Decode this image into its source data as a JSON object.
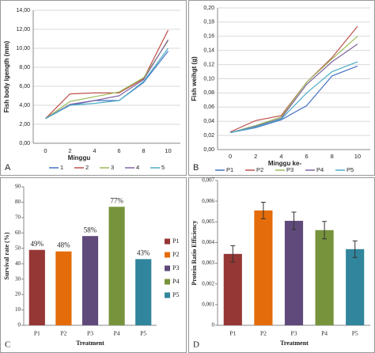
{
  "chart_data": [
    {
      "type": "line",
      "label": "A",
      "x_label": "Minggu",
      "y_label": "Fish body lgength (mm)",
      "categories": [
        "0",
        "2",
        "4",
        "6",
        "8",
        "10"
      ],
      "ylim": [
        0,
        14
      ],
      "yticks": [
        {
          "value": 0,
          "label": "0,00"
        },
        {
          "value": 2,
          "label": "2,00"
        },
        {
          "value": 4,
          "label": "4,00"
        },
        {
          "value": 6,
          "label": "6,00"
        },
        {
          "value": 8,
          "label": "8,00"
        },
        {
          "value": 10,
          "label": "10,00"
        },
        {
          "value": 12,
          "label": "12,00"
        },
        {
          "value": 14,
          "label": "14,00"
        }
      ],
      "grid": true,
      "legend": "bottom",
      "series": [
        {
          "name": "1",
          "color": "#4472c4",
          "values": [
            2.6,
            4.0,
            4.5,
            4.5,
            6.4,
            9.7
          ]
        },
        {
          "name": "2",
          "color": "#c0504d",
          "values": [
            2.6,
            5.2,
            5.3,
            5.3,
            6.8,
            11.9
          ]
        },
        {
          "name": "3",
          "color": "#9bbb59",
          "values": [
            2.6,
            4.4,
            4.9,
            5.4,
            6.9,
            10.8
          ]
        },
        {
          "name": "4",
          "color": "#8064a2",
          "values": [
            2.6,
            4.1,
            4.5,
            5.0,
            6.7,
            10.9
          ]
        },
        {
          "name": "5",
          "color": "#4bacc6",
          "values": [
            2.6,
            4.0,
            4.2,
            4.5,
            6.5,
            10.0
          ]
        }
      ]
    },
    {
      "type": "line",
      "label": "B",
      "x_label": "Minggu ke-",
      "y_label": "Fish weihgt (g)",
      "categories": [
        "0",
        "2",
        "4",
        "6",
        "8",
        "10"
      ],
      "ylim": [
        0,
        0.2
      ],
      "yticks": [
        {
          "value": 0,
          "label": "0,00"
        },
        {
          "value": 0.02,
          "label": "0,02"
        },
        {
          "value": 0.04,
          "label": "0,04"
        },
        {
          "value": 0.06,
          "label": "0,06"
        },
        {
          "value": 0.08,
          "label": "0,08"
        },
        {
          "value": 0.1,
          "label": "0,10"
        },
        {
          "value": 0.12,
          "label": "0,12"
        },
        {
          "value": 0.14,
          "label": "0,14"
        },
        {
          "value": 0.16,
          "label": "0,16"
        },
        {
          "value": 0.18,
          "label": "0,18"
        },
        {
          "value": 0.2,
          "label": "0,20"
        }
      ],
      "grid": true,
      "legend": "bottom",
      "series": [
        {
          "name": "P1",
          "color": "#4472c4",
          "values": [
            0.024,
            0.031,
            0.042,
            0.062,
            0.104,
            0.118
          ]
        },
        {
          "name": "P2",
          "color": "#c0504d",
          "values": [
            0.025,
            0.041,
            0.048,
            0.095,
            0.13,
            0.174
          ]
        },
        {
          "name": "P3",
          "color": "#9bbb59",
          "values": [
            0.024,
            0.034,
            0.046,
            0.095,
            0.128,
            0.16
          ]
        },
        {
          "name": "P4",
          "color": "#8064a2",
          "values": [
            0.024,
            0.033,
            0.044,
            0.092,
            0.124,
            0.149
          ]
        },
        {
          "name": "P5",
          "color": "#4bacc6",
          "values": [
            0.024,
            0.032,
            0.043,
            0.08,
            0.11,
            0.124
          ]
        }
      ]
    },
    {
      "type": "bar",
      "label": "C",
      "x_label": "Treatment",
      "y_label": "Survival rate (%)",
      "categories": [
        "P1",
        "P2",
        "P3",
        "P4",
        "P5"
      ],
      "values": [
        49,
        48,
        58,
        77,
        43
      ],
      "value_labels": [
        "49%",
        "48%",
        "58%",
        "77%",
        "43%"
      ],
      "colors": [
        "#953735",
        "#e46c0a",
        "#604a7b",
        "#77933c",
        "#31859c"
      ],
      "ylim": [
        0,
        90
      ],
      "yticks": [
        0,
        10,
        20,
        30,
        40,
        50,
        60,
        70,
        80,
        90
      ],
      "grid": false,
      "legend": "right"
    },
    {
      "type": "errorbar",
      "label": "D",
      "x_label": "Treatment",
      "y_label": "Protein Ratio Efficiency",
      "categories": [
        "P1",
        "P2",
        "P3",
        "P4",
        "P5"
      ],
      "values": [
        0.00345,
        0.00555,
        0.00505,
        0.0046,
        0.00368
      ],
      "errors": [
        0.0004,
        0.0004,
        0.00042,
        0.00042,
        0.0004
      ],
      "colors": [
        "#953735",
        "#e46c0a",
        "#604a7b",
        "#77933c",
        "#31859c"
      ],
      "ylim": [
        0,
        0.007
      ],
      "yticks": [
        0,
        {
          "value": 0.001,
          "label": "0,001"
        },
        {
          "value": 0.002,
          "label": "0,002"
        },
        {
          "value": 0.003,
          "label": "0,003"
        },
        {
          "value": 0.004,
          "label": "0,004"
        },
        {
          "value": 0.005,
          "label": "0,005"
        },
        {
          "value": 0.006,
          "label": "0,006"
        },
        {
          "value": 0.007,
          "label": "0,007"
        }
      ],
      "grid": false
    }
  ]
}
